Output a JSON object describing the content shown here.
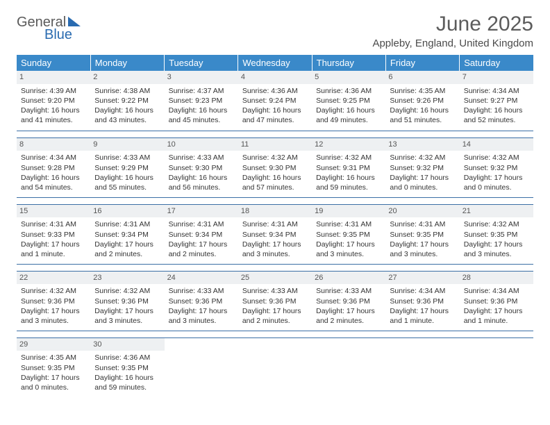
{
  "logo": {
    "text1": "General",
    "text2": "Blue"
  },
  "title": "June 2025",
  "location": "Appleby, England, United Kingdom",
  "colors": {
    "header_bg": "#3a89c9",
    "header_fg": "#ffffff",
    "sep": "#3a6ea5",
    "daynum_bg": "#eef0f2"
  },
  "weekdays": [
    "Sunday",
    "Monday",
    "Tuesday",
    "Wednesday",
    "Thursday",
    "Friday",
    "Saturday"
  ],
  "weeks": [
    [
      {
        "n": "1",
        "sr": "4:39 AM",
        "ss": "9:20 PM",
        "dl": "16 hours and 41 minutes."
      },
      {
        "n": "2",
        "sr": "4:38 AM",
        "ss": "9:22 PM",
        "dl": "16 hours and 43 minutes."
      },
      {
        "n": "3",
        "sr": "4:37 AM",
        "ss": "9:23 PM",
        "dl": "16 hours and 45 minutes."
      },
      {
        "n": "4",
        "sr": "4:36 AM",
        "ss": "9:24 PM",
        "dl": "16 hours and 47 minutes."
      },
      {
        "n": "5",
        "sr": "4:36 AM",
        "ss": "9:25 PM",
        "dl": "16 hours and 49 minutes."
      },
      {
        "n": "6",
        "sr": "4:35 AM",
        "ss": "9:26 PM",
        "dl": "16 hours and 51 minutes."
      },
      {
        "n": "7",
        "sr": "4:34 AM",
        "ss": "9:27 PM",
        "dl": "16 hours and 52 minutes."
      }
    ],
    [
      {
        "n": "8",
        "sr": "4:34 AM",
        "ss": "9:28 PM",
        "dl": "16 hours and 54 minutes."
      },
      {
        "n": "9",
        "sr": "4:33 AM",
        "ss": "9:29 PM",
        "dl": "16 hours and 55 minutes."
      },
      {
        "n": "10",
        "sr": "4:33 AM",
        "ss": "9:30 PM",
        "dl": "16 hours and 56 minutes."
      },
      {
        "n": "11",
        "sr": "4:32 AM",
        "ss": "9:30 PM",
        "dl": "16 hours and 57 minutes."
      },
      {
        "n": "12",
        "sr": "4:32 AM",
        "ss": "9:31 PM",
        "dl": "16 hours and 59 minutes."
      },
      {
        "n": "13",
        "sr": "4:32 AM",
        "ss": "9:32 PM",
        "dl": "17 hours and 0 minutes."
      },
      {
        "n": "14",
        "sr": "4:32 AM",
        "ss": "9:32 PM",
        "dl": "17 hours and 0 minutes."
      }
    ],
    [
      {
        "n": "15",
        "sr": "4:31 AM",
        "ss": "9:33 PM",
        "dl": "17 hours and 1 minute."
      },
      {
        "n": "16",
        "sr": "4:31 AM",
        "ss": "9:34 PM",
        "dl": "17 hours and 2 minutes."
      },
      {
        "n": "17",
        "sr": "4:31 AM",
        "ss": "9:34 PM",
        "dl": "17 hours and 2 minutes."
      },
      {
        "n": "18",
        "sr": "4:31 AM",
        "ss": "9:34 PM",
        "dl": "17 hours and 3 minutes."
      },
      {
        "n": "19",
        "sr": "4:31 AM",
        "ss": "9:35 PM",
        "dl": "17 hours and 3 minutes."
      },
      {
        "n": "20",
        "sr": "4:31 AM",
        "ss": "9:35 PM",
        "dl": "17 hours and 3 minutes."
      },
      {
        "n": "21",
        "sr": "4:32 AM",
        "ss": "9:35 PM",
        "dl": "17 hours and 3 minutes."
      }
    ],
    [
      {
        "n": "22",
        "sr": "4:32 AM",
        "ss": "9:36 PM",
        "dl": "17 hours and 3 minutes."
      },
      {
        "n": "23",
        "sr": "4:32 AM",
        "ss": "9:36 PM",
        "dl": "17 hours and 3 minutes."
      },
      {
        "n": "24",
        "sr": "4:33 AM",
        "ss": "9:36 PM",
        "dl": "17 hours and 3 minutes."
      },
      {
        "n": "25",
        "sr": "4:33 AM",
        "ss": "9:36 PM",
        "dl": "17 hours and 2 minutes."
      },
      {
        "n": "26",
        "sr": "4:33 AM",
        "ss": "9:36 PM",
        "dl": "17 hours and 2 minutes."
      },
      {
        "n": "27",
        "sr": "4:34 AM",
        "ss": "9:36 PM",
        "dl": "17 hours and 1 minute."
      },
      {
        "n": "28",
        "sr": "4:34 AM",
        "ss": "9:36 PM",
        "dl": "17 hours and 1 minute."
      }
    ],
    [
      {
        "n": "29",
        "sr": "4:35 AM",
        "ss": "9:35 PM",
        "dl": "17 hours and 0 minutes."
      },
      {
        "n": "30",
        "sr": "4:36 AM",
        "ss": "9:35 PM",
        "dl": "16 hours and 59 minutes."
      },
      null,
      null,
      null,
      null,
      null
    ]
  ],
  "labels": {
    "sunrise": "Sunrise:",
    "sunset": "Sunset:",
    "daylight": "Daylight:"
  }
}
